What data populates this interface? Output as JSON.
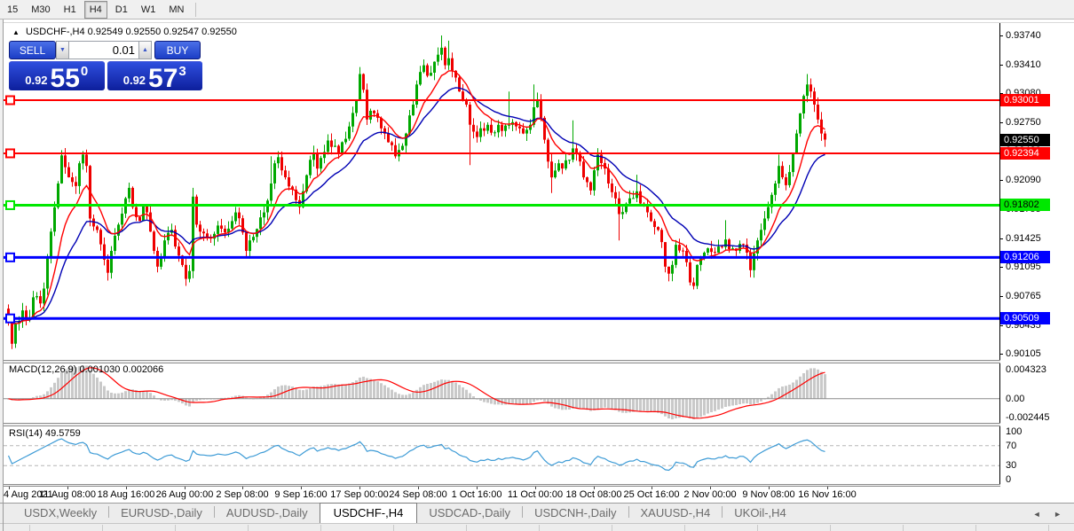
{
  "toolbar": {
    "timeframes": [
      {
        "label": "15",
        "active": false
      },
      {
        "label": "M30",
        "active": false
      },
      {
        "label": "H1",
        "active": false
      },
      {
        "label": "H4",
        "active": true
      },
      {
        "label": "D1",
        "active": false
      },
      {
        "label": "W1",
        "active": false
      },
      {
        "label": "MN",
        "active": false
      }
    ]
  },
  "chart": {
    "title_symbol": "USDCHF-,H4",
    "title_ohlc": "0.92549 0.92550 0.92547 0.92550",
    "trade_panel": {
      "sell_label": "SELL",
      "buy_label": "BUY",
      "lot": "0.01",
      "spin_down": "▼",
      "spin_up": "▲",
      "sell_price": {
        "base": "0.92",
        "big": "55",
        "sup": "0"
      },
      "buy_price": {
        "base": "0.92",
        "big": "57",
        "sup": "3"
      }
    },
    "current_price_badge": {
      "label": "0.92550",
      "price": 0.9255,
      "bg": "#000000",
      "fg": "#ffffff"
    }
  },
  "chart_data": {
    "type": "candlestick",
    "symbol": "USDCHF-",
    "timeframe": "H4",
    "up_color": "#00a800",
    "down_color": "#ee0000",
    "ma_fast": {
      "period": 10,
      "color": "#ff0000"
    },
    "ma_slow": {
      "period": 21,
      "color": "#0000b4"
    },
    "candle_count": 231,
    "price_axis_ticks": [
      0.9374,
      0.9341,
      0.9308,
      0.9275,
      0.9242,
      0.9209,
      0.91755,
      0.91425,
      0.91095,
      0.90765,
      0.90435,
      0.90105
    ],
    "horizontal_levels": [
      {
        "price": 0.93001,
        "label": "0.93001",
        "color": "#ff0000",
        "badge_fg": "#ffffff",
        "thickness": 2
      },
      {
        "price": 0.92394,
        "label": "0.92394",
        "color": "#ff0000",
        "badge_fg": "#ffffff",
        "thickness": 2
      },
      {
        "price": 0.91802,
        "label": "0.91802",
        "color": "#00e800",
        "badge_fg": "#000000",
        "thickness": 3
      },
      {
        "price": 0.91206,
        "label": "0.91206",
        "color": "#0000ff",
        "badge_fg": "#ffffff",
        "thickness": 3
      },
      {
        "price": 0.90509,
        "label": "0.90509",
        "color": "#0000ff",
        "badge_fg": "#ffffff",
        "thickness": 3
      }
    ],
    "x_labels": [
      "4 Aug 2021",
      "11 Aug 08:00",
      "18 Aug 16:00",
      "26 Aug 00:00",
      "2 Sep 08:00",
      "9 Sep 16:00",
      "17 Sep 00:00",
      "24 Sep 08:00",
      "1 Oct 16:00",
      "11 Oct 00:00",
      "18 Oct 08:00",
      "25 Oct 16:00",
      "2 Nov 00:00",
      "9 Nov 08:00",
      "16 Nov 16:00"
    ],
    "price_anchors": [
      [
        0,
        0.905
      ],
      [
        1,
        0.9022
      ],
      [
        2,
        0.9045
      ],
      [
        4,
        0.906
      ],
      [
        6,
        0.9052
      ],
      [
        7,
        0.9075
      ],
      [
        9,
        0.9068
      ],
      [
        10,
        0.9085
      ],
      [
        12,
        0.915
      ],
      [
        14,
        0.9205
      ],
      [
        15,
        0.9237
      ],
      [
        17,
        0.9212
      ],
      [
        19,
        0.9202
      ],
      [
        20,
        0.9228
      ],
      [
        21,
        0.9238
      ],
      [
        22,
        0.9225
      ],
      [
        23,
        0.9165
      ],
      [
        25,
        0.9152
      ],
      [
        27,
        0.9118
      ],
      [
        28,
        0.9103
      ],
      [
        29,
        0.9128
      ],
      [
        31,
        0.9158
      ],
      [
        33,
        0.9188
      ],
      [
        34,
        0.92
      ],
      [
        35,
        0.9178
      ],
      [
        37,
        0.9162
      ],
      [
        38,
        0.918
      ],
      [
        39,
        0.9172
      ],
      [
        40,
        0.915
      ],
      [
        41,
        0.9128
      ],
      [
        42,
        0.911
      ],
      [
        43,
        0.9122
      ],
      [
        44,
        0.914
      ],
      [
        46,
        0.9152
      ],
      [
        47,
        0.9133
      ],
      [
        49,
        0.9112
      ],
      [
        50,
        0.9096
      ],
      [
        51,
        0.9105
      ],
      [
        52,
        0.919
      ],
      [
        53,
        0.9158
      ],
      [
        55,
        0.9148
      ],
      [
        57,
        0.9142
      ],
      [
        59,
        0.9157
      ],
      [
        61,
        0.9149
      ],
      [
        63,
        0.9162
      ],
      [
        64,
        0.9172
      ],
      [
        66,
        0.9149
      ],
      [
        67,
        0.9128
      ],
      [
        68,
        0.914
      ],
      [
        70,
        0.9153
      ],
      [
        72,
        0.9172
      ],
      [
        74,
        0.9205
      ],
      [
        75,
        0.9228
      ],
      [
        76,
        0.9235
      ],
      [
        78,
        0.9212
      ],
      [
        80,
        0.9198
      ],
      [
        82,
        0.9178
      ],
      [
        83,
        0.9196
      ],
      [
        85,
        0.9232
      ],
      [
        86,
        0.924
      ],
      [
        87,
        0.9222
      ],
      [
        89,
        0.9241
      ],
      [
        90,
        0.9254
      ],
      [
        92,
        0.9248
      ],
      [
        93,
        0.924
      ],
      [
        95,
        0.9256
      ],
      [
        96,
        0.927
      ],
      [
        98,
        0.93
      ],
      [
        99,
        0.933
      ],
      [
        100,
        0.9312
      ],
      [
        101,
        0.9278
      ],
      [
        102,
        0.9288
      ],
      [
        104,
        0.928
      ],
      [
        105,
        0.9268
      ],
      [
        107,
        0.9252
      ],
      [
        109,
        0.9236
      ],
      [
        111,
        0.9248
      ],
      [
        112,
        0.9262
      ],
      [
        114,
        0.9295
      ],
      [
        115,
        0.9318
      ],
      [
        117,
        0.934
      ],
      [
        118,
        0.9328
      ],
      [
        120,
        0.9344
      ],
      [
        121,
        0.9352
      ],
      [
        122,
        0.936
      ],
      [
        123,
        0.934
      ],
      [
        124,
        0.9348
      ],
      [
        126,
        0.9326
      ],
      [
        127,
        0.931
      ],
      [
        129,
        0.9295
      ],
      [
        130,
        0.9272
      ],
      [
        132,
        0.9258
      ],
      [
        133,
        0.9268
      ],
      [
        135,
        0.9272
      ],
      [
        136,
        0.9263
      ],
      [
        138,
        0.9272
      ],
      [
        139,
        0.9265
      ],
      [
        141,
        0.9272
      ],
      [
        142,
        0.9275
      ],
      [
        144,
        0.9268
      ],
      [
        145,
        0.9262
      ],
      [
        147,
        0.9272
      ],
      [
        148,
        0.9292
      ],
      [
        149,
        0.93
      ],
      [
        150,
        0.928
      ],
      [
        151,
        0.9255
      ],
      [
        152,
        0.923
      ],
      [
        153,
        0.9212
      ],
      [
        155,
        0.9228
      ],
      [
        156,
        0.9222
      ],
      [
        158,
        0.9232
      ],
      [
        159,
        0.9245
      ],
      [
        161,
        0.923
      ],
      [
        162,
        0.9212
      ],
      [
        164,
        0.9197
      ],
      [
        165,
        0.922
      ],
      [
        166,
        0.9238
      ],
      [
        168,
        0.9222
      ],
      [
        169,
        0.9205
      ],
      [
        171,
        0.9188
      ],
      [
        172,
        0.917
      ],
      [
        174,
        0.9182
      ],
      [
        175,
        0.9188
      ],
      [
        177,
        0.9196
      ],
      [
        178,
        0.9182
      ],
      [
        180,
        0.9172
      ],
      [
        181,
        0.9162
      ],
      [
        183,
        0.9152
      ],
      [
        184,
        0.9138
      ],
      [
        185,
        0.911
      ],
      [
        186,
        0.9102
      ],
      [
        187,
        0.9112
      ],
      [
        188,
        0.9135
      ],
      [
        190,
        0.9128
      ],
      [
        191,
        0.9115
      ],
      [
        192,
        0.9092
      ],
      [
        193,
        0.9088
      ],
      [
        194,
        0.9112
      ],
      [
        196,
        0.9126
      ],
      [
        197,
        0.9131
      ],
      [
        199,
        0.9126
      ],
      [
        200,
        0.9133
      ],
      [
        202,
        0.9141
      ],
      [
        203,
        0.913
      ],
      [
        205,
        0.9128
      ],
      [
        206,
        0.9136
      ],
      [
        208,
        0.9126
      ],
      [
        209,
        0.9106
      ],
      [
        210,
        0.9125
      ],
      [
        211,
        0.914
      ],
      [
        212,
        0.9152
      ],
      [
        213,
        0.9165
      ],
      [
        214,
        0.9178
      ],
      [
        215,
        0.9192
      ],
      [
        216,
        0.9205
      ],
      [
        217,
        0.9225
      ],
      [
        218,
        0.9212
      ],
      [
        219,
        0.9203
      ],
      [
        220,
        0.9218
      ],
      [
        221,
        0.924
      ],
      [
        222,
        0.9262
      ],
      [
        223,
        0.9285
      ],
      [
        224,
        0.9305
      ],
      [
        225,
        0.9318
      ],
      [
        226,
        0.931
      ],
      [
        227,
        0.9295
      ],
      [
        228,
        0.9278
      ],
      [
        229,
        0.9262
      ],
      [
        230,
        0.9255
      ]
    ],
    "wick_overrides": {
      "1": {
        "low": 0.9016
      },
      "15": {
        "high": 0.9243
      },
      "21": {
        "high": 0.9242
      },
      "34": {
        "high": 0.9206
      },
      "50": {
        "low": 0.9088
      },
      "52": {
        "high": 0.92
      },
      "74": {
        "high": 0.9236
      },
      "99": {
        "high": 0.9338
      },
      "122": {
        "high": 0.9374
      },
      "124": {
        "high": 0.9368
      },
      "130": {
        "low": 0.9226
      },
      "141": {
        "high": 0.931
      },
      "148": {
        "high": 0.9318
      },
      "153": {
        "low": 0.9194
      },
      "159": {
        "high": 0.9277
      },
      "172": {
        "low": 0.914
      },
      "177": {
        "high": 0.9215
      },
      "193": {
        "low": 0.9084
      },
      "202": {
        "high": 0.9163
      },
      "209": {
        "low": 0.9098
      },
      "217": {
        "high": 0.9238
      },
      "225": {
        "high": 0.933
      }
    },
    "indicators": [
      {
        "name": "MACD",
        "params": "12,26,9",
        "label": "MACD(12,26,9) 0.001030 0.002066",
        "values": [
          "0.001030",
          "0.002066"
        ],
        "scale_labels": [
          "0.004323",
          "0.00",
          "-0.002445"
        ],
        "histogram_color": "#c9c9c9",
        "signal_color": "#ff0000"
      },
      {
        "name": "RSI",
        "params": "14",
        "label": "RSI(14) 49.5759",
        "value": "49.5759",
        "scale_labels": [
          "100",
          "70",
          "30",
          "0"
        ],
        "levels": [
          70,
          30
        ],
        "line_color": "#3d9bd6"
      }
    ]
  },
  "tabs": {
    "items": [
      {
        "label": "USDX,Weekly",
        "active": false
      },
      {
        "label": "EURUSD-,Daily",
        "active": false
      },
      {
        "label": "AUDUSD-,Daily",
        "active": false
      },
      {
        "label": "USDCHF-,H4",
        "active": true
      },
      {
        "label": "USDCAD-,Daily",
        "active": false
      },
      {
        "label": "USDCNH-,Daily",
        "active": false
      },
      {
        "label": "XAUUSD-,H4",
        "active": false
      },
      {
        "label": "UKOil-,H4",
        "active": false
      }
    ],
    "arrow_left": "◄",
    "arrow_right": "►"
  }
}
